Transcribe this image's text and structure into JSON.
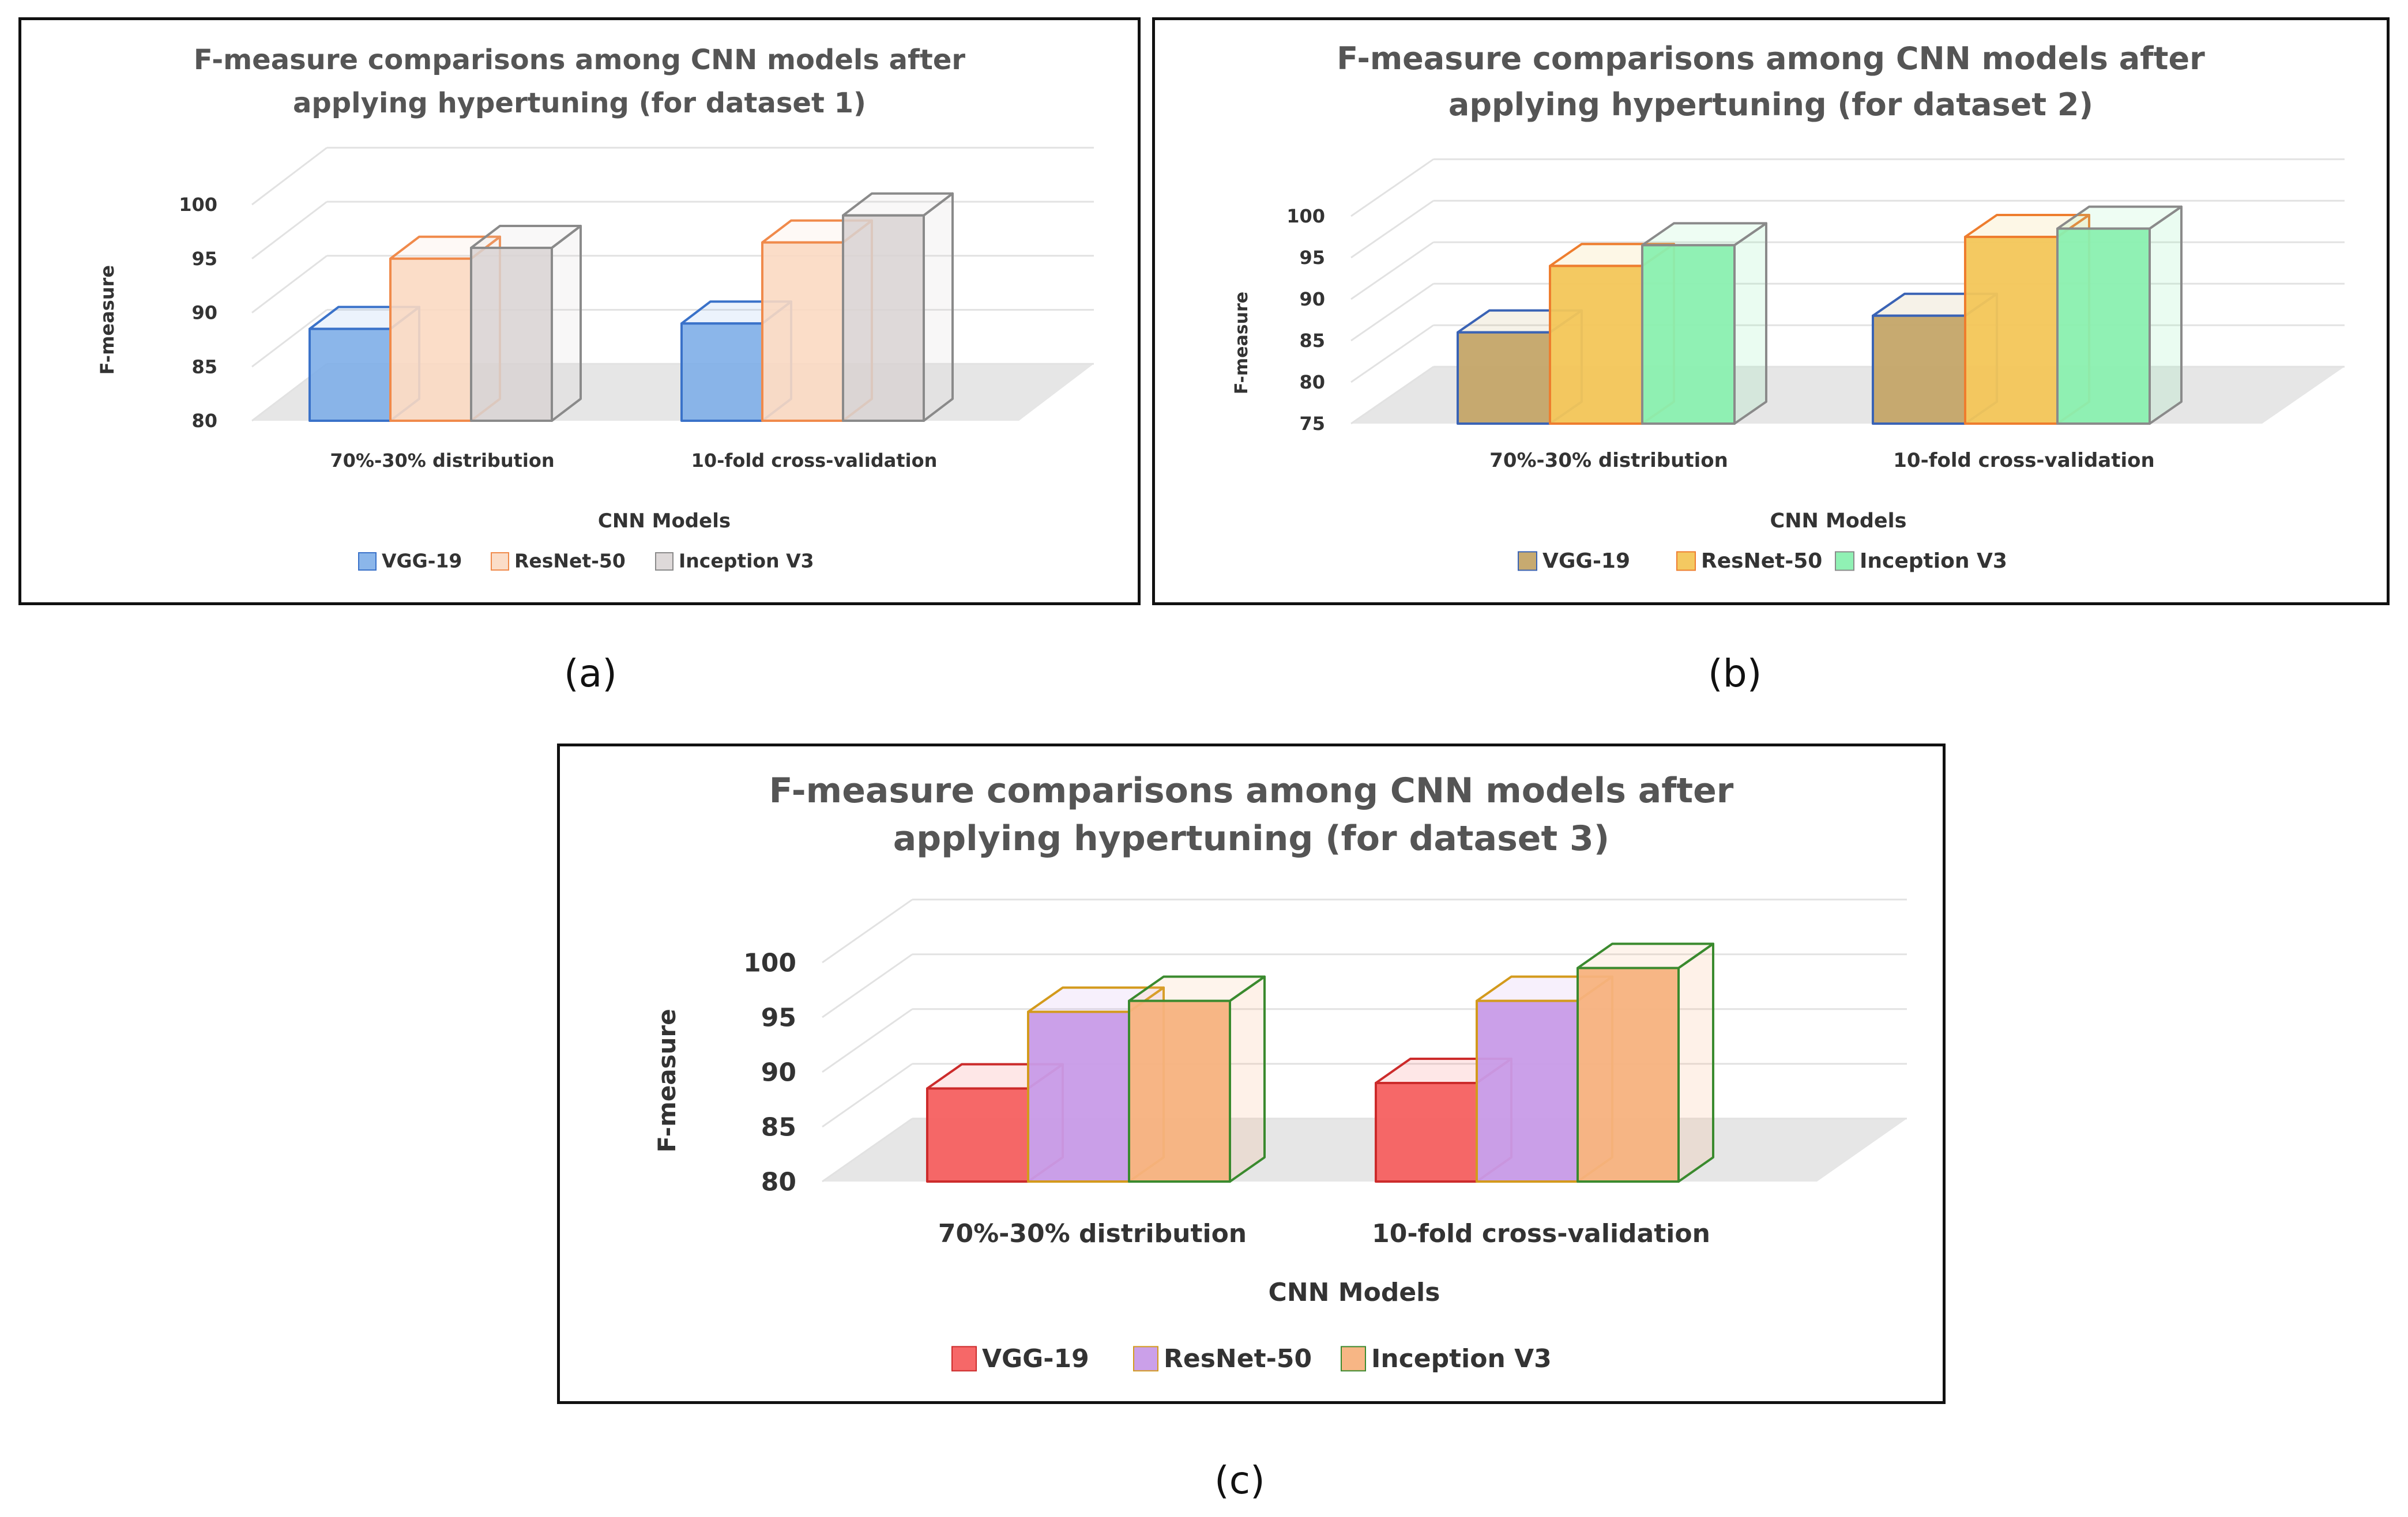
{
  "chart_data": [
    {
      "id": "a",
      "type": "bar",
      "title_lines": [
        "F-measure comparisons among CNN models after",
        "applying hypertuning (for dataset 1)"
      ],
      "xlabel": "CNN Models",
      "ylabel": "F-measure",
      "ylim": [
        80,
        100
      ],
      "yticks": [
        80,
        85,
        90,
        95,
        100
      ],
      "categories": [
        "70%-30% distribution",
        "10-fold cross-validation"
      ],
      "series": [
        {
          "name": "VGG-19",
          "values": [
            88.5,
            89
          ],
          "fill": "#7eaee8",
          "stroke": "#3a72c9",
          "fill_opacity": 0.9
        },
        {
          "name": "ResNet-50",
          "values": [
            95,
            96.5
          ],
          "fill": "#fbd9c2",
          "stroke": "#f08a4b",
          "fill_opacity": 0.9
        },
        {
          "name": "Inception V3",
          "values": [
            96,
            99
          ],
          "fill": "#d8d2d2",
          "stroke": "#8a8a8a",
          "fill_opacity": 0.85
        }
      ],
      "caption": "(a)"
    },
    {
      "id": "b",
      "type": "bar",
      "title_lines": [
        "F-measure comparisons among CNN models after",
        "applying hypertuning (for dataset 2)"
      ],
      "xlabel": "CNN Models",
      "ylabel": "F-measure",
      "ylim": [
        75,
        100
      ],
      "yticks": [
        75,
        80,
        85,
        90,
        95,
        100
      ],
      "categories": [
        "70%-30% distribution",
        "10-fold cross-validation"
      ],
      "series": [
        {
          "name": "VGG-19",
          "values": [
            86,
            88
          ],
          "fill": "#c4a568",
          "stroke": "#3a63b5",
          "fill_opacity": 0.95
        },
        {
          "name": "ResNet-50",
          "values": [
            94,
            97.5
          ],
          "fill": "#f3c658",
          "stroke": "#ee7d2e",
          "fill_opacity": 0.95
        },
        {
          "name": "Inception V3",
          "values": [
            96.5,
            98.5
          ],
          "fill": "#8af0b0",
          "stroke": "#8a8a8a",
          "fill_opacity": 0.95
        }
      ],
      "caption": "(b)"
    },
    {
      "id": "c",
      "type": "bar",
      "title_lines": [
        "F-measure comparisons among CNN models after",
        "applying hypertuning (for dataset 3)"
      ],
      "xlabel": "CNN Models",
      "ylabel": "F-measure",
      "ylim": [
        80,
        100
      ],
      "yticks": [
        80,
        85,
        90,
        95,
        100
      ],
      "categories": [
        "70%-30% distribution",
        "10-fold cross-validation"
      ],
      "series": [
        {
          "name": "VGG-19",
          "values": [
            88.5,
            89
          ],
          "fill": "#f56060",
          "stroke": "#cc2b2b",
          "fill_opacity": 0.95
        },
        {
          "name": "ResNet-50",
          "values": [
            95.5,
            96.5
          ],
          "fill": "#c89be8",
          "stroke": "#d39a1c",
          "fill_opacity": 0.95
        },
        {
          "name": "Inception V3",
          "values": [
            96.5,
            99.5
          ],
          "fill": "#f7b27e",
          "stroke": "#3a8a2e",
          "fill_opacity": 0.95
        }
      ],
      "caption": "(c)"
    }
  ]
}
